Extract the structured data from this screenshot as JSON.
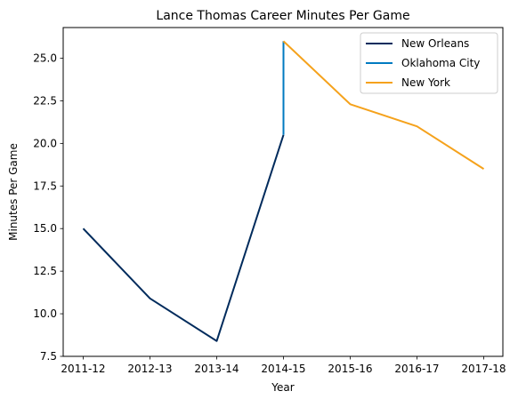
{
  "chart_data": {
    "type": "line",
    "title": "Lance Thomas Career Minutes Per Game",
    "xlabel": "Year",
    "ylabel": "Minutes Per Game",
    "categories": [
      "2011-12",
      "2012-13",
      "2013-14",
      "2014-15",
      "2015-16",
      "2016-17",
      "2017-18"
    ],
    "y_ticks": [
      "7.5",
      "10.0",
      "12.5",
      "15.0",
      "17.5",
      "20.0",
      "22.5",
      "25.0"
    ],
    "y_tick_values": [
      7.5,
      10.0,
      12.5,
      15.0,
      17.5,
      20.0,
      22.5,
      25.0
    ],
    "ylim": [
      7.5,
      26.8
    ],
    "grid": false,
    "legend_position": "top-right",
    "series": [
      {
        "name": "New Orleans",
        "color": "#002B5C",
        "points": [
          {
            "x": "2011-12",
            "y": 15.0
          },
          {
            "x": "2012-13",
            "y": 10.9
          },
          {
            "x": "2013-14",
            "y": 8.4
          },
          {
            "x": "2014-15",
            "y": 20.5
          }
        ]
      },
      {
        "name": "Oklahoma City",
        "color": "#007AC1",
        "points": [
          {
            "x": "2014-15",
            "y": 20.5
          },
          {
            "x": "2014-15",
            "y": 26.0
          }
        ]
      },
      {
        "name": "New York",
        "color": "#F5A21C",
        "points": [
          {
            "x": "2014-15",
            "y": 26.0
          },
          {
            "x": "2015-16",
            "y": 22.3
          },
          {
            "x": "2016-17",
            "y": 21.0
          },
          {
            "x": "2017-18",
            "y": 18.5
          }
        ]
      }
    ]
  }
}
